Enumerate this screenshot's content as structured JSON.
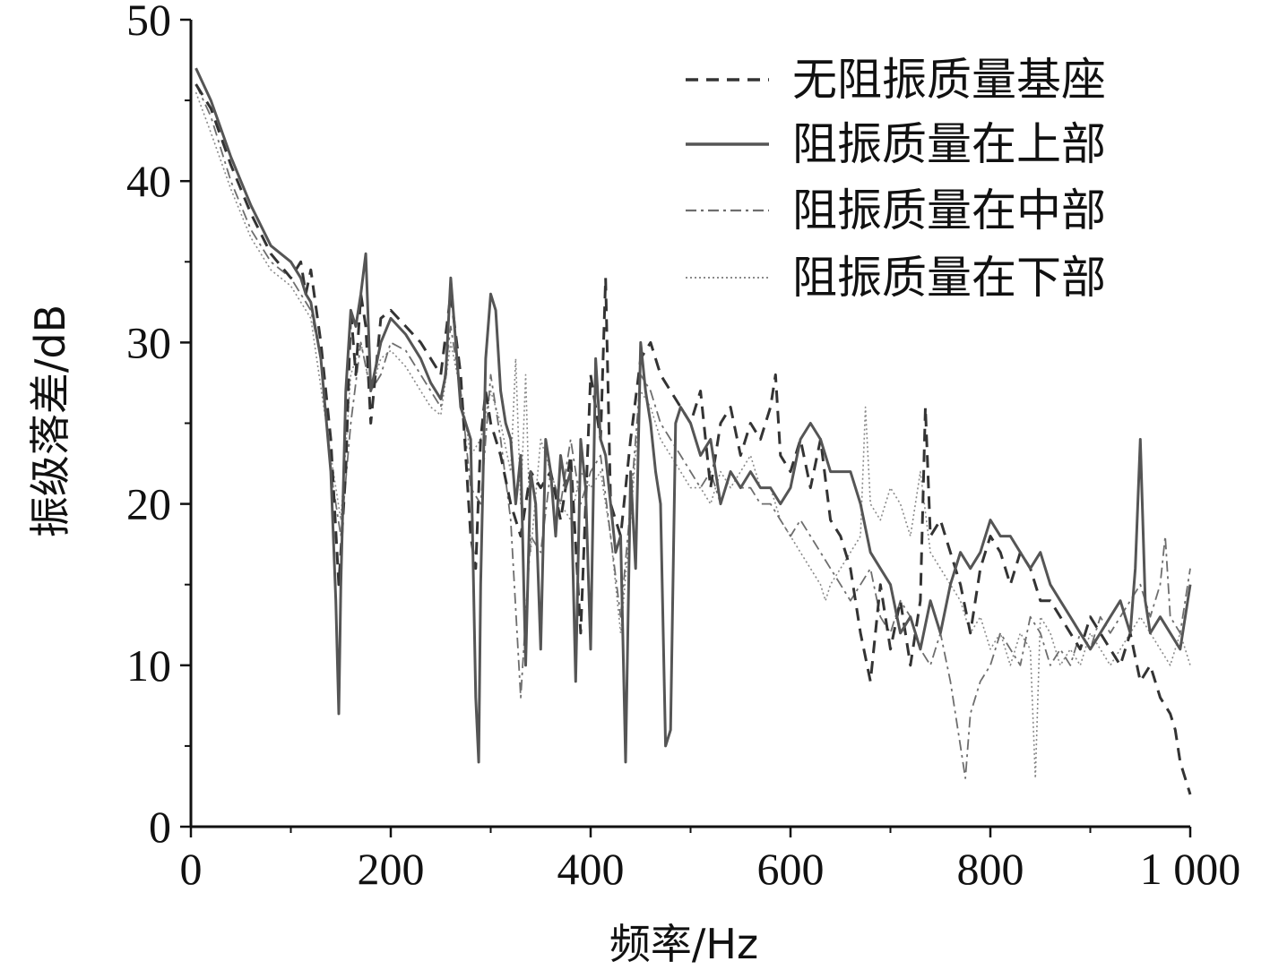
{
  "chart_data": {
    "type": "line",
    "title": "",
    "xlabel": "频率/Hz",
    "ylabel": "振级落差/dB",
    "xlim": [
      0,
      1000
    ],
    "ylim": [
      0,
      50
    ],
    "xticks": [
      0,
      200,
      400,
      600,
      800,
      1000
    ],
    "xtick_labels": [
      "0",
      "200",
      "400",
      "600",
      "800",
      "1 000"
    ],
    "yticks": [
      0,
      10,
      20,
      30,
      40,
      50
    ],
    "ytick_labels": [
      "0",
      "10",
      "20",
      "30",
      "40",
      "50"
    ],
    "grid": false,
    "legend_position": "top-right",
    "series": [
      {
        "name": "无阻振质量基座",
        "style": "dashed",
        "color": "#333333",
        "x": [
          5,
          20,
          40,
          60,
          80,
          100,
          110,
          115,
          120,
          130,
          140,
          148,
          155,
          160,
          165,
          170,
          175,
          180,
          190,
          200,
          215,
          230,
          240,
          250,
          260,
          270,
          280,
          285,
          290,
          295,
          300,
          310,
          320,
          330,
          340,
          350,
          360,
          370,
          380,
          390,
          400,
          410,
          415,
          420,
          430,
          440,
          450,
          460,
          470,
          480,
          490,
          500,
          510,
          520,
          530,
          540,
          550,
          560,
          570,
          580,
          585,
          590,
          600,
          610,
          620,
          630,
          640,
          650,
          660,
          670,
          680,
          690,
          700,
          710,
          720,
          730,
          735,
          740,
          750,
          760,
          770,
          780,
          790,
          800,
          810,
          820,
          830,
          840,
          850,
          860,
          870,
          880,
          890,
          900,
          910,
          920,
          930,
          940,
          950,
          960,
          970,
          980,
          985,
          990,
          995,
          1000
        ],
        "y": [
          46,
          44.5,
          41,
          38,
          35.5,
          34,
          35,
          33,
          34.5,
          30,
          24,
          15,
          22,
          32,
          28,
          33,
          31,
          25,
          31.5,
          32,
          31,
          30,
          29,
          28,
          33,
          28,
          18,
          16,
          24,
          27,
          25,
          23,
          20,
          18,
          22,
          21,
          22,
          19,
          23,
          12,
          28,
          24,
          34,
          20,
          18,
          24,
          29,
          30,
          28,
          27,
          26,
          25,
          27,
          21,
          25,
          26,
          23,
          25,
          24,
          26,
          28,
          23,
          22,
          24,
          21,
          24,
          19,
          18,
          16,
          12,
          9,
          15,
          11,
          14,
          10,
          14,
          26,
          18,
          19,
          17,
          15,
          12,
          16,
          18,
          17,
          15,
          17,
          16,
          14,
          14,
          13,
          12,
          11,
          13,
          12,
          11,
          10,
          12,
          9,
          10,
          8,
          7,
          6,
          4,
          3,
          2
        ]
      },
      {
        "name": "阻振质量在上部",
        "style": "solid",
        "color": "#555555",
        "x": [
          5,
          20,
          40,
          60,
          80,
          100,
          110,
          115,
          120,
          130,
          140,
          145,
          148,
          150,
          155,
          160,
          165,
          170,
          175,
          180,
          190,
          200,
          215,
          230,
          240,
          250,
          255,
          260,
          265,
          270,
          280,
          285,
          288,
          290,
          295,
          300,
          305,
          310,
          315,
          320,
          325,
          330,
          335,
          340,
          345,
          350,
          355,
          360,
          365,
          370,
          375,
          380,
          385,
          390,
          395,
          400,
          405,
          410,
          415,
          420,
          425,
          430,
          435,
          440,
          445,
          450,
          455,
          460,
          465,
          470,
          475,
          480,
          485,
          490,
          500,
          510,
          520,
          530,
          540,
          550,
          560,
          570,
          580,
          590,
          600,
          610,
          620,
          630,
          640,
          650,
          660,
          670,
          680,
          690,
          700,
          710,
          720,
          730,
          740,
          750,
          760,
          770,
          780,
          790,
          800,
          810,
          820,
          830,
          840,
          850,
          860,
          870,
          880,
          890,
          900,
          910,
          920,
          930,
          940,
          945,
          950,
          955,
          960,
          970,
          980,
          990,
          1000
        ],
        "y": [
          47,
          45,
          41.5,
          38.5,
          36,
          35,
          34,
          33,
          32.5,
          29,
          22,
          14,
          7,
          15,
          27,
          32,
          31,
          33,
          35.5,
          27,
          30,
          31.5,
          30.5,
          29,
          27.5,
          26.5,
          28,
          34,
          30,
          26,
          24,
          8,
          4,
          15,
          29,
          33,
          32,
          27,
          25,
          24,
          20,
          23,
          10,
          22,
          20,
          11,
          24,
          22,
          18,
          23,
          21,
          22,
          9,
          24,
          21,
          11,
          29,
          24,
          23,
          20,
          17,
          18,
          4,
          22,
          16,
          30,
          27,
          25,
          22,
          20,
          5,
          6,
          25,
          26,
          25,
          23,
          24,
          20,
          22,
          21,
          22,
          21,
          21,
          20,
          21,
          24,
          25,
          24,
          22,
          22,
          22,
          20,
          17,
          16,
          15,
          12,
          13,
          11,
          14,
          12,
          15,
          17,
          16,
          17,
          19,
          18,
          18,
          17,
          16,
          17,
          15,
          14,
          13,
          12,
          11,
          12,
          13,
          14,
          12,
          16,
          24,
          14,
          12,
          13,
          12,
          11,
          15
        ]
      },
      {
        "name": "阻振质量在中部",
        "style": "dashdot",
        "color": "#6e6e6e",
        "x": [
          5,
          20,
          40,
          60,
          80,
          100,
          110,
          120,
          130,
          140,
          150,
          160,
          170,
          180,
          190,
          200,
          215,
          230,
          240,
          250,
          260,
          270,
          280,
          290,
          300,
          310,
          320,
          330,
          340,
          350,
          360,
          370,
          380,
          390,
          400,
          410,
          420,
          430,
          440,
          450,
          460,
          470,
          480,
          490,
          500,
          510,
          520,
          530,
          540,
          550,
          560,
          570,
          580,
          590,
          600,
          610,
          620,
          630,
          640,
          650,
          660,
          670,
          680,
          690,
          700,
          710,
          720,
          730,
          740,
          750,
          760,
          770,
          775,
          780,
          790,
          800,
          810,
          820,
          830,
          840,
          850,
          860,
          870,
          880,
          890,
          900,
          910,
          920,
          930,
          940,
          950,
          960,
          970,
          975,
          980,
          990,
          1000
        ],
        "y": [
          46,
          44,
          40,
          37,
          35,
          34,
          33,
          32,
          29,
          22,
          18,
          25,
          30,
          27,
          28,
          30,
          29.5,
          28,
          27,
          26,
          31,
          27,
          21,
          20,
          28,
          24,
          19,
          8,
          18,
          17,
          22,
          20,
          24,
          20,
          22,
          23,
          18,
          13,
          20,
          28,
          27,
          25,
          24,
          23,
          22,
          21,
          22,
          20,
          22,
          21,
          21,
          20,
          20,
          19,
          18,
          19,
          18,
          17,
          16,
          15,
          14,
          15,
          16,
          13,
          12,
          14,
          13,
          11,
          10,
          12,
          9,
          5,
          3,
          7,
          9,
          10,
          12,
          11,
          10,
          13,
          12,
          10,
          11,
          10,
          12,
          11,
          13,
          12,
          13,
          14,
          15,
          13,
          15,
          18,
          13,
          12,
          16
        ]
      },
      {
        "name": "阻振质量在下部",
        "style": "dotted",
        "color": "#8a8a8a",
        "x": [
          5,
          20,
          40,
          60,
          80,
          100,
          120,
          140,
          150,
          160,
          170,
          180,
          190,
          200,
          215,
          230,
          240,
          250,
          260,
          270,
          280,
          290,
          300,
          310,
          320,
          325,
          330,
          335,
          340,
          350,
          360,
          370,
          380,
          390,
          400,
          410,
          420,
          430,
          440,
          450,
          460,
          470,
          480,
          490,
          500,
          510,
          520,
          530,
          540,
          550,
          560,
          570,
          580,
          590,
          600,
          610,
          620,
          630,
          635,
          640,
          650,
          660,
          670,
          675,
          680,
          690,
          700,
          710,
          720,
          730,
          740,
          750,
          760,
          770,
          780,
          790,
          800,
          810,
          820,
          830,
          840,
          845,
          850,
          860,
          870,
          880,
          890,
          900,
          910,
          920,
          930,
          940,
          950,
          960,
          970,
          980,
          990,
          1000
        ],
        "y": [
          45.5,
          43,
          39.5,
          36.5,
          34.5,
          33.5,
          31.5,
          23,
          19,
          28,
          30,
          27,
          29,
          29.5,
          28.5,
          27,
          26,
          25.5,
          30,
          27,
          23,
          24,
          27,
          25,
          22,
          29,
          20,
          28,
          17,
          24,
          22,
          20,
          19,
          22,
          21,
          22,
          18,
          12,
          19,
          27,
          26,
          24,
          23,
          22,
          21,
          21,
          20,
          22,
          21,
          22,
          23,
          21,
          21,
          19,
          18,
          17,
          16,
          15,
          14,
          15,
          16,
          17,
          18,
          26,
          20,
          19,
          21,
          20,
          18,
          22,
          17,
          16,
          15,
          14,
          12,
          13,
          11,
          12,
          10,
          12,
          11,
          3,
          13,
          12,
          10,
          11,
          10,
          12,
          11,
          10,
          11,
          12,
          13,
          12,
          11,
          10,
          12,
          10
        ]
      }
    ]
  }
}
